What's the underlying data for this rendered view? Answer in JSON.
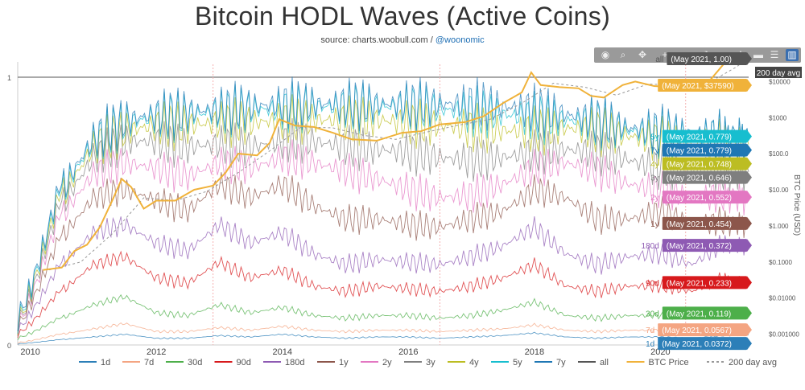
{
  "header": {
    "title": "Bitcoin HODL Waves (Active Coins)",
    "source_prefix": "source: charts.woobull.com / ",
    "source_handle": "@woonomic"
  },
  "toolbar": {
    "icons": [
      "camera-icon",
      "zoom-icon",
      "pan-icon",
      "zoom-in-icon",
      "zoom-out-icon",
      "autoscale-icon",
      "reset-axes-icon",
      "spike-lines-icon",
      "hover-closest-icon",
      "hover-compare-icon",
      "bar-chart-icon"
    ]
  },
  "chart_data": {
    "type": "line",
    "title": "Bitcoin HODL Waves (Active Coins)",
    "x_range": [
      2009.8,
      2021.4
    ],
    "x_ticks": [
      2010,
      2012,
      2014,
      2016,
      2018,
      2020
    ],
    "x_tick_labels": [
      "2010",
      "2012",
      "2014",
      "2016",
      "2018",
      "2020"
    ],
    "y_left_range": [
      0,
      1
    ],
    "y_left_tick_labels": [
      "0",
      "1"
    ],
    "y_right_label": "BTC Price (USD)",
    "y_right_log_range": [
      0.0005,
      30000
    ],
    "y_right_ticks": [
      0.001,
      0.01,
      0.1,
      1,
      10,
      100,
      1000,
      10000
    ],
    "y_right_tick_labels": [
      "$0.001000",
      "$0.01000",
      "$0.1000",
      "$1.000",
      "$10.00",
      "$100.0",
      "$1000",
      "$10000"
    ],
    "vertical_markers": [
      2012.9,
      2016.5,
      2020.4
    ],
    "legend_position": "bottom",
    "hover_header": "May 2021",
    "series": [
      {
        "name": "1d",
        "color": "#2c7fb8",
        "last": "0.0372",
        "label": "1d",
        "hover": "(May 2021, 0.0372)",
        "x": [
          2009.8,
          2010.5,
          2011.0,
          2011.5,
          2012.0,
          2012.5,
          2013.0,
          2013.5,
          2014.0,
          2014.5,
          2015.0,
          2015.5,
          2016.0,
          2016.5,
          2017.0,
          2017.5,
          2018.0,
          2018.5,
          2019.0,
          2019.5,
          2020.0,
          2020.5,
          2021.0,
          2021.4
        ],
        "y": [
          0.005,
          0.02,
          0.03,
          0.04,
          0.025,
          0.025,
          0.035,
          0.03,
          0.04,
          0.03,
          0.025,
          0.03,
          0.03,
          0.025,
          0.03,
          0.035,
          0.045,
          0.03,
          0.025,
          0.03,
          0.03,
          0.025,
          0.035,
          0.037
        ]
      },
      {
        "name": "7d",
        "color": "#f4a582",
        "last": "0.0567",
        "label": "7d",
        "hover": "(May 2021, 0.0567)",
        "x": [
          2009.8,
          2010.5,
          2011.0,
          2011.5,
          2012.0,
          2012.5,
          2013.0,
          2013.5,
          2014.0,
          2014.5,
          2015.0,
          2015.5,
          2016.0,
          2016.5,
          2017.0,
          2017.5,
          2018.0,
          2018.5,
          2019.0,
          2019.5,
          2020.0,
          2020.5,
          2021.0,
          2021.4
        ],
        "y": [
          0.01,
          0.04,
          0.06,
          0.08,
          0.05,
          0.05,
          0.065,
          0.055,
          0.07,
          0.055,
          0.05,
          0.055,
          0.055,
          0.05,
          0.055,
          0.06,
          0.075,
          0.055,
          0.05,
          0.055,
          0.055,
          0.05,
          0.06,
          0.057
        ]
      },
      {
        "name": "30d",
        "color": "#4daf4a",
        "last": "0.119",
        "label": "30d",
        "hover": "(May 2021, 0.119)",
        "x": [
          2009.8,
          2010.5,
          2011.0,
          2011.5,
          2012.0,
          2012.5,
          2013.0,
          2013.5,
          2014.0,
          2014.5,
          2015.0,
          2015.5,
          2016.0,
          2016.5,
          2017.0,
          2017.5,
          2018.0,
          2018.5,
          2019.0,
          2019.5,
          2020.0,
          2020.5,
          2021.0,
          2021.4
        ],
        "y": [
          0.03,
          0.1,
          0.15,
          0.18,
          0.12,
          0.11,
          0.15,
          0.12,
          0.14,
          0.11,
          0.1,
          0.11,
          0.11,
          0.1,
          0.11,
          0.13,
          0.16,
          0.11,
          0.1,
          0.11,
          0.11,
          0.1,
          0.13,
          0.119
        ]
      },
      {
        "name": "90d",
        "color": "#d7191c",
        "last": "0.233",
        "label": "90d",
        "hover": "(May 2021, 0.233)",
        "x": [
          2009.8,
          2010.5,
          2011.0,
          2011.5,
          2012.0,
          2012.5,
          2013.0,
          2013.5,
          2014.0,
          2014.5,
          2015.0,
          2015.5,
          2016.0,
          2016.5,
          2017.0,
          2017.5,
          2018.0,
          2018.5,
          2019.0,
          2019.5,
          2020.0,
          2020.5,
          2021.0,
          2021.4
        ],
        "y": [
          0.05,
          0.2,
          0.3,
          0.33,
          0.25,
          0.23,
          0.31,
          0.25,
          0.28,
          0.22,
          0.2,
          0.22,
          0.21,
          0.2,
          0.22,
          0.25,
          0.3,
          0.22,
          0.2,
          0.22,
          0.22,
          0.2,
          0.25,
          0.233
        ]
      },
      {
        "name": "180d",
        "color": "#8e5ab3",
        "last": "0.372",
        "label": "180d",
        "hover": "(May 2021, 0.372)",
        "x": [
          2009.8,
          2010.5,
          2011.0,
          2011.5,
          2012.0,
          2012.5,
          2013.0,
          2013.5,
          2014.0,
          2014.5,
          2015.0,
          2015.5,
          2016.0,
          2016.5,
          2017.0,
          2017.5,
          2018.0,
          2018.5,
          2019.0,
          2019.5,
          2020.0,
          2020.5,
          2021.0,
          2021.4
        ],
        "y": [
          0.07,
          0.3,
          0.42,
          0.45,
          0.38,
          0.35,
          0.45,
          0.38,
          0.42,
          0.34,
          0.3,
          0.32,
          0.31,
          0.3,
          0.33,
          0.37,
          0.44,
          0.34,
          0.3,
          0.33,
          0.34,
          0.3,
          0.38,
          0.372
        ]
      },
      {
        "name": "1y",
        "color": "#8c564b",
        "last": "0.454",
        "label": "1y",
        "hover": "(May 2021, 0.454)",
        "x": [
          2009.8,
          2010.5,
          2011.0,
          2011.5,
          2012.0,
          2012.5,
          2013.0,
          2013.5,
          2014.0,
          2014.5,
          2015.0,
          2015.5,
          2016.0,
          2016.5,
          2017.0,
          2017.5,
          2018.0,
          2018.5,
          2019.0,
          2019.5,
          2020.0,
          2020.5,
          2021.0,
          2021.4
        ],
        "y": [
          0.09,
          0.4,
          0.55,
          0.58,
          0.54,
          0.5,
          0.6,
          0.55,
          0.6,
          0.52,
          0.47,
          0.47,
          0.45,
          0.44,
          0.47,
          0.5,
          0.58,
          0.55,
          0.47,
          0.47,
          0.5,
          0.45,
          0.46,
          0.454
        ]
      },
      {
        "name": "2y",
        "color": "#e377c2",
        "last": "0.552",
        "label": "2y",
        "hover": "(May 2021, 0.552)",
        "x": [
          2009.8,
          2010.5,
          2011.0,
          2011.5,
          2012.0,
          2012.5,
          2013.0,
          2013.5,
          2014.0,
          2014.5,
          2015.0,
          2015.5,
          2016.0,
          2016.5,
          2017.0,
          2017.5,
          2018.0,
          2018.5,
          2019.0,
          2019.5,
          2020.0,
          2020.5,
          2021.0,
          2021.4
        ],
        "y": [
          0.1,
          0.48,
          0.64,
          0.68,
          0.66,
          0.63,
          0.68,
          0.66,
          0.7,
          0.68,
          0.65,
          0.62,
          0.58,
          0.55,
          0.56,
          0.6,
          0.66,
          0.68,
          0.65,
          0.6,
          0.58,
          0.55,
          0.56,
          0.552
        ]
      },
      {
        "name": "3y",
        "color": "#7f7f7f",
        "last": "0.646",
        "label": "3y",
        "hover": "(May 2021, 0.646)",
        "x": [
          2009.8,
          2010.5,
          2011.0,
          2011.5,
          2012.0,
          2012.5,
          2013.0,
          2013.5,
          2014.0,
          2014.5,
          2015.0,
          2015.5,
          2016.0,
          2016.5,
          2017.0,
          2017.5,
          2018.0,
          2018.5,
          2019.0,
          2019.5,
          2020.0,
          2020.5,
          2021.0,
          2021.4
        ],
        "y": [
          0.11,
          0.52,
          0.7,
          0.76,
          0.76,
          0.74,
          0.75,
          0.74,
          0.76,
          0.76,
          0.74,
          0.73,
          0.72,
          0.7,
          0.69,
          0.7,
          0.72,
          0.73,
          0.72,
          0.69,
          0.66,
          0.65,
          0.65,
          0.646
        ]
      },
      {
        "name": "4y",
        "color": "#bcbd22",
        "last": "0.748",
        "label": "4y",
        "hover": "(May 2021, 0.748)",
        "x": [
          2009.8,
          2010.5,
          2011.0,
          2011.5,
          2012.0,
          2012.5,
          2013.0,
          2013.5,
          2014.0,
          2014.5,
          2015.0,
          2015.5,
          2016.0,
          2016.5,
          2017.0,
          2017.5,
          2018.0,
          2018.5,
          2019.0,
          2019.5,
          2020.0,
          2020.5,
          2021.0,
          2021.4
        ],
        "y": [
          0.12,
          0.55,
          0.74,
          0.8,
          0.82,
          0.82,
          0.83,
          0.83,
          0.84,
          0.84,
          0.84,
          0.84,
          0.83,
          0.82,
          0.81,
          0.8,
          0.8,
          0.81,
          0.8,
          0.78,
          0.76,
          0.75,
          0.75,
          0.748
        ]
      },
      {
        "name": "5y",
        "color": "#17becf",
        "last": "0.779",
        "label": "5y",
        "hover": "(May 2021, 0.779)",
        "x": [
          2009.8,
          2010.5,
          2011.0,
          2011.5,
          2012.0,
          2012.5,
          2013.0,
          2013.5,
          2014.0,
          2014.5,
          2015.0,
          2015.5,
          2016.0,
          2016.5,
          2017.0,
          2017.5,
          2018.0,
          2018.5,
          2019.0,
          2019.5,
          2020.0,
          2020.5,
          2021.0,
          2021.4
        ],
        "y": [
          0.13,
          0.57,
          0.76,
          0.83,
          0.85,
          0.86,
          0.87,
          0.88,
          0.88,
          0.89,
          0.89,
          0.89,
          0.89,
          0.88,
          0.87,
          0.86,
          0.85,
          0.84,
          0.83,
          0.8,
          0.79,
          0.78,
          0.78,
          0.779
        ]
      },
      {
        "name": "7y",
        "color": "#1f77b4",
        "last": "0.779",
        "label": "7y",
        "hover": "(May 2021, 0.779)",
        "x": [
          2009.8,
          2010.5,
          2011.0,
          2011.5,
          2012.0,
          2012.5,
          2013.0,
          2013.5,
          2014.0,
          2014.5,
          2015.0,
          2015.5,
          2016.0,
          2016.5,
          2017.0,
          2017.5,
          2018.0,
          2018.5,
          2019.0,
          2019.5,
          2020.0,
          2020.5,
          2021.0,
          2021.4
        ],
        "y": [
          0.14,
          0.58,
          0.77,
          0.84,
          0.86,
          0.87,
          0.88,
          0.89,
          0.9,
          0.9,
          0.9,
          0.9,
          0.9,
          0.9,
          0.9,
          0.89,
          0.88,
          0.86,
          0.84,
          0.81,
          0.8,
          0.79,
          0.78,
          0.779
        ]
      },
      {
        "name": "all",
        "color": "#555555",
        "last": "1.00",
        "label": "all",
        "hover": "(May 2021, 1.00)",
        "x": [
          2009.8,
          2021.4
        ],
        "y": [
          1.0,
          1.0
        ]
      }
    ],
    "price_series": {
      "name": "BTC Price",
      "color": "#f0b23a",
      "hover": "(May 2021, $37590)",
      "x": [
        2010.2,
        2010.5,
        2010.7,
        2010.9,
        2011.1,
        2011.3,
        2011.45,
        2011.6,
        2011.8,
        2012.0,
        2012.3,
        2012.6,
        2012.9,
        2013.1,
        2013.3,
        2013.6,
        2013.8,
        2013.95,
        2014.2,
        2014.5,
        2014.8,
        2015.1,
        2015.5,
        2015.9,
        2016.2,
        2016.5,
        2016.9,
        2017.2,
        2017.5,
        2017.8,
        2017.95,
        2018.1,
        2018.4,
        2018.7,
        2018.9,
        2019.1,
        2019.4,
        2019.6,
        2019.9,
        2020.2,
        2020.5,
        2020.8,
        2021.0,
        2021.2,
        2021.4
      ],
      "y": [
        0.06,
        0.07,
        0.2,
        0.3,
        0.9,
        5,
        20,
        12,
        3,
        5,
        5,
        10,
        13,
        30,
        100,
        90,
        200,
        900,
        600,
        550,
        380,
        250,
        230,
        380,
        420,
        650,
        750,
        1100,
        2500,
        5000,
        18000,
        8000,
        7000,
        6500,
        4000,
        3600,
        8000,
        10000,
        7500,
        7000,
        9200,
        11500,
        30000,
        58000,
        37590
      ]
    },
    "avg_series": {
      "name": "200 day avg",
      "color": "#999999",
      "label": "200 day avg",
      "x": [
        2010.3,
        2010.8,
        2011.3,
        2011.8,
        2012.3,
        2012.8,
        2013.3,
        2013.8,
        2014.3,
        2014.8,
        2015.3,
        2015.8,
        2016.3,
        2016.8,
        2017.3,
        2017.8,
        2018.3,
        2018.8,
        2019.3,
        2019.8,
        2020.3,
        2020.8,
        2021.2,
        2021.4
      ],
      "y": [
        0.06,
        0.1,
        0.6,
        6,
        5,
        9,
        30,
        120,
        550,
        520,
        320,
        250,
        400,
        620,
        900,
        2500,
        9000,
        7000,
        4200,
        8500,
        8000,
        10000,
        25000,
        45000
      ]
    },
    "legend": [
      {
        "label": "1d",
        "color": "#2c7fb8"
      },
      {
        "label": "7d",
        "color": "#f4a582"
      },
      {
        "label": "30d",
        "color": "#4daf4a"
      },
      {
        "label": "90d",
        "color": "#d7191c"
      },
      {
        "label": "180d",
        "color": "#8e5ab3"
      },
      {
        "label": "1y",
        "color": "#8c564b"
      },
      {
        "label": "2y",
        "color": "#e377c2"
      },
      {
        "label": "3y",
        "color": "#7f7f7f"
      },
      {
        "label": "4y",
        "color": "#bcbd22"
      },
      {
        "label": "5y",
        "color": "#17becf"
      },
      {
        "label": "7y",
        "color": "#1f77b4"
      },
      {
        "label": "all",
        "color": "#555555"
      },
      {
        "label": "BTC Price",
        "color": "#f0b23a"
      },
      {
        "label": "200 day avg",
        "color": "#999999",
        "dashed": true
      }
    ]
  }
}
